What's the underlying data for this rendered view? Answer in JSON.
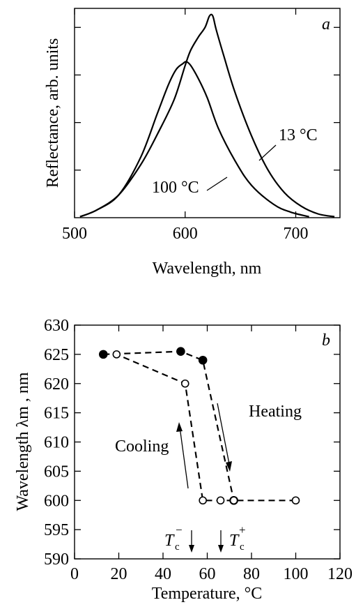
{
  "chart_data": [
    {
      "type": "line",
      "panel_label": "a",
      "xlabel": "Wavelength, nm",
      "ylabel": "Reflectance, arb. units",
      "xlim": [
        500,
        740
      ],
      "ylim": [
        0,
        1.1
      ],
      "xticks": [
        "500",
        "600",
        "700"
      ],
      "xtick_values": [
        500,
        600,
        700
      ],
      "ytick_values": [
        0.25,
        0.5,
        0.75,
        1.0
      ],
      "yticks_labeled": false,
      "series": [
        {
          "name": "13 °C",
          "x": [
            505,
            520,
            540,
            560,
            575,
            590,
            600,
            605,
            612,
            618,
            622,
            625,
            628,
            635,
            645,
            660,
            675,
            690,
            705,
            720,
            735
          ],
          "y": [
            0.005,
            0.04,
            0.12,
            0.28,
            0.44,
            0.62,
            0.8,
            0.88,
            0.95,
            1.0,
            1.06,
            1.06,
            0.99,
            0.85,
            0.66,
            0.43,
            0.25,
            0.13,
            0.06,
            0.02,
            0.005
          ]
        },
        {
          "name": "100 °C",
          "x": [
            505,
            520,
            540,
            560,
            575,
            585,
            592,
            598,
            601,
            605,
            612,
            620,
            630,
            645,
            660,
            680,
            695,
            712
          ],
          "y": [
            0.005,
            0.04,
            0.12,
            0.32,
            0.55,
            0.7,
            0.78,
            0.81,
            0.82,
            0.8,
            0.73,
            0.63,
            0.47,
            0.3,
            0.17,
            0.07,
            0.03,
            0.005
          ]
        }
      ],
      "annotations": [
        "13 °C",
        "100 °C"
      ]
    },
    {
      "type": "line",
      "panel_label": "b",
      "xlabel": "Temperature, °C",
      "ylabel": "Wavelength λm , nm",
      "xlim": [
        0,
        120
      ],
      "ylim": [
        590,
        630
      ],
      "xticks": [
        "0",
        "20",
        "40",
        "60",
        "80",
        "100",
        "120"
      ],
      "yticks": [
        "590",
        "595",
        "600",
        "605",
        "610",
        "615",
        "620",
        "625",
        "630"
      ],
      "series": [
        {
          "name": "Heating",
          "marker": "filled",
          "x": [
            13,
            48,
            58,
            72
          ],
          "y": [
            625,
            625.5,
            624,
            600
          ]
        },
        {
          "name": "Cooling",
          "marker": "open",
          "x": [
            100,
            72,
            66,
            58,
            50,
            19
          ],
          "y": [
            600,
            600,
            600,
            600,
            620,
            625
          ]
        }
      ],
      "annotations": [
        "Heating",
        "Cooling"
      ],
      "markers": [
        {
          "label_main": "T",
          "label_sub": "c",
          "label_sup": "−",
          "x": 53
        },
        {
          "label_main": "T",
          "label_sub": "c",
          "label_sup": "+",
          "x": 66
        }
      ]
    }
  ]
}
